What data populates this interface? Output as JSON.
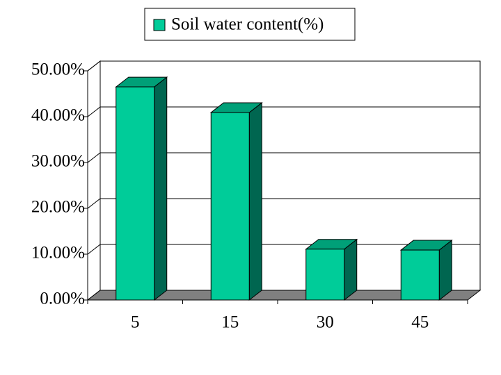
{
  "chart_data": {
    "type": "bar3d",
    "categories": [
      "5",
      "15",
      "30",
      "45"
    ],
    "series": [
      {
        "name": "Soil water content(%)",
        "color": "#00cc99",
        "values": [
          46.5,
          40.9,
          11.1,
          10.9
        ]
      }
    ],
    "ylim": [
      0,
      50
    ],
    "yticks": [
      {
        "value": 0,
        "label": "0.00%"
      },
      {
        "value": 10,
        "label": "10.00%"
      },
      {
        "value": 20,
        "label": "20.00%"
      },
      {
        "value": 30,
        "label": "30.00%"
      },
      {
        "value": 40,
        "label": "40.00%"
      },
      {
        "value": 50,
        "label": "50.00%"
      }
    ],
    "grid": true,
    "legend": "top"
  }
}
